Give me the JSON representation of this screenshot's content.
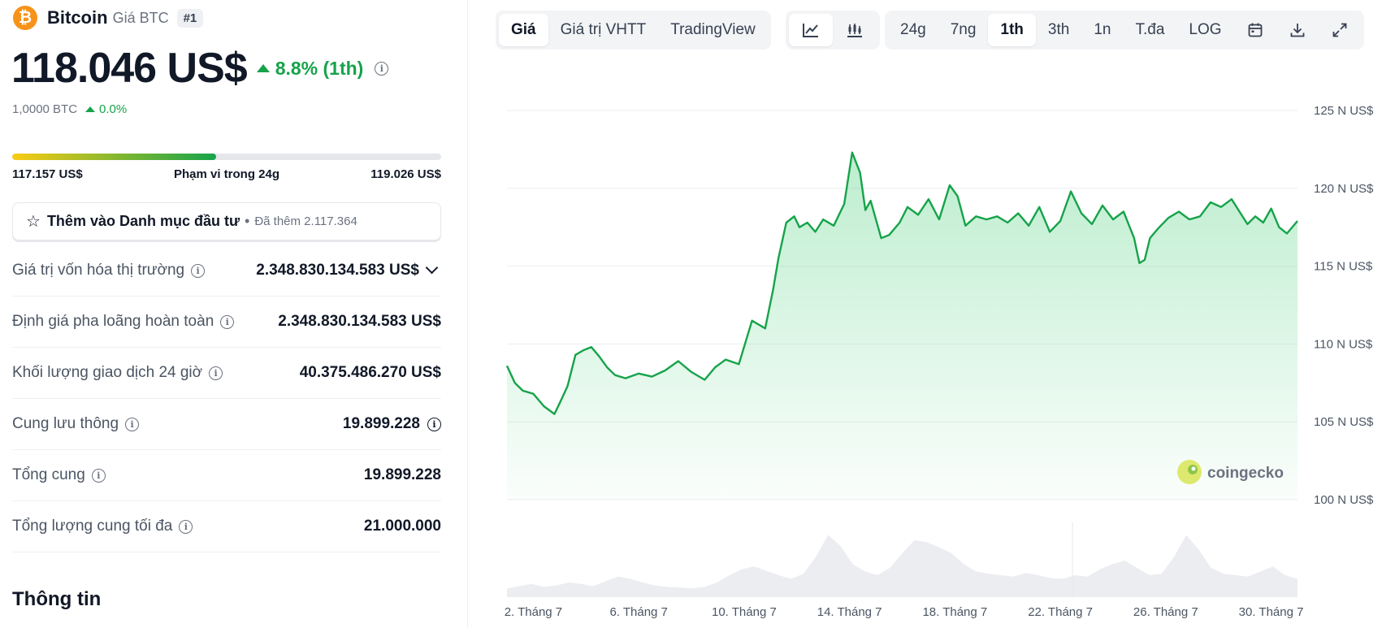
{
  "coin": {
    "logo_glyph": "₿",
    "name": "Bitcoin",
    "subtitle": "Giá BTC",
    "rank": "#1",
    "price": "118.046 US$",
    "change_label": "8.8% (1th)",
    "btc_amount": "1,0000 BTC",
    "btc_change": "0.0%"
  },
  "range": {
    "low": "117.157 US$",
    "label": "Phạm vi trong 24g",
    "high": "119.026 US$",
    "fill_percent": 47.5
  },
  "watchlist": {
    "star_glyph": "☆",
    "label": "Thêm vào Danh mục đầu tư",
    "separator": "•",
    "added": "Đã thêm 2.117.364"
  },
  "stats": [
    {
      "key": "Giá trị vốn hóa thị trường",
      "value": "2.348.830.134.583 US$"
    },
    {
      "key": "Định giá pha loãng hoàn toàn",
      "value": "2.348.830.134.583 US$"
    },
    {
      "key": "Khối lượng giao dịch 24 giờ",
      "value": "40.375.486.270 US$"
    },
    {
      "key": "Cung lưu thông",
      "value": "19.899.228"
    },
    {
      "key": "Tổng cung",
      "value": "19.899.228"
    },
    {
      "key": "Tổng lượng cung tối đa",
      "value": "21.000.000"
    }
  ],
  "info_glyph": "i",
  "section_title": "Thông tin",
  "toolbar": {
    "view_tabs": [
      "Giá",
      "Giá trị VHTT",
      "TradingView"
    ],
    "active_view": 0,
    "chart_type_icons": [
      "line-chart-icon",
      "candlestick-icon"
    ],
    "active_chart_type": 0,
    "range_tabs": [
      "24g",
      "7ng",
      "1th",
      "3th",
      "1n",
      "T.đa",
      "LOG"
    ],
    "active_range": 2,
    "extra_icons": [
      "calendar-icon",
      "download-icon",
      "fullscreen-icon"
    ]
  },
  "chart_data": {
    "type": "area",
    "title": "",
    "xlabel": "",
    "ylabel": "",
    "ylim": [
      100,
      125
    ],
    "y_ticks": [
      125,
      120,
      115,
      110,
      105,
      100
    ],
    "y_tick_labels": [
      "125 N US$",
      "120 N US$",
      "115 N US$",
      "110 N US$",
      "105 N US$",
      "100 N US$"
    ],
    "x_range": [
      1,
      31
    ],
    "x_ticks": [
      2,
      6,
      10,
      14,
      18,
      22,
      26,
      30
    ],
    "x_tick_labels": [
      "2. Tháng 7",
      "6. Tháng 7",
      "10. Tháng 7",
      "14. Tháng 7",
      "18. Tháng 7",
      "22. Tháng 7",
      "26. Tháng 7",
      "30. Tháng 7"
    ],
    "x": [
      1.0,
      1.3,
      1.6,
      2.0,
      2.4,
      2.8,
      3.0,
      3.3,
      3.6,
      3.9,
      4.2,
      4.5,
      4.8,
      5.1,
      5.5,
      6.0,
      6.5,
      7.0,
      7.5,
      8.0,
      8.5,
      8.9,
      9.3,
      9.8,
      10.3,
      10.8,
      11.1,
      11.3,
      11.6,
      11.9,
      12.1,
      12.4,
      12.7,
      13.0,
      13.4,
      13.8,
      14.1,
      14.4,
      14.6,
      14.8,
      15.2,
      15.5,
      15.9,
      16.2,
      16.6,
      17.0,
      17.4,
      17.8,
      18.1,
      18.4,
      18.8,
      19.2,
      19.6,
      20.0,
      20.4,
      20.8,
      21.2,
      21.6,
      22.0,
      22.4,
      22.8,
      23.2,
      23.6,
      24.0,
      24.4,
      24.8,
      25.0,
      25.2,
      25.4,
      25.7,
      26.1,
      26.5,
      26.9,
      27.3,
      27.7,
      28.1,
      28.5,
      28.8,
      29.1,
      29.4,
      29.7,
      30.0,
      30.3,
      30.6,
      31.0
    ],
    "values": [
      108.6,
      107.5,
      107.0,
      106.8,
      106.0,
      105.5,
      106.2,
      107.3,
      109.3,
      109.6,
      109.8,
      109.2,
      108.5,
      108.0,
      107.8,
      108.1,
      107.9,
      108.3,
      108.9,
      108.2,
      107.7,
      108.5,
      109.0,
      108.7,
      111.5,
      111.0,
      113.5,
      115.5,
      117.8,
      118.2,
      117.5,
      117.8,
      117.2,
      118.0,
      117.6,
      119.0,
      122.3,
      121.0,
      118.6,
      119.2,
      116.8,
      117.0,
      117.8,
      118.8,
      118.3,
      119.3,
      118.0,
      120.2,
      119.5,
      117.6,
      118.2,
      118.0,
      118.2,
      117.8,
      118.4,
      117.6,
      118.8,
      117.2,
      117.9,
      119.8,
      118.4,
      117.7,
      118.9,
      118.0,
      118.5,
      116.8,
      115.2,
      115.4,
      116.8,
      117.4,
      118.1,
      118.5,
      118.0,
      118.2,
      119.1,
      118.8,
      119.3,
      118.5,
      117.7,
      118.2,
      117.8,
      118.7,
      117.5,
      117.1,
      117.9
    ],
    "volume_relative": [
      0.12,
      0.15,
      0.18,
      0.14,
      0.16,
      0.2,
      0.18,
      0.15,
      0.22,
      0.28,
      0.25,
      0.2,
      0.16,
      0.14,
      0.13,
      0.12,
      0.14,
      0.2,
      0.3,
      0.38,
      0.42,
      0.36,
      0.3,
      0.25,
      0.32,
      0.55,
      0.85,
      0.7,
      0.45,
      0.35,
      0.3,
      0.4,
      0.6,
      0.78,
      0.75,
      0.68,
      0.6,
      0.45,
      0.35,
      0.32,
      0.3,
      0.28,
      0.33,
      0.3,
      0.26,
      0.25,
      0.3,
      0.28,
      0.38,
      0.45,
      0.5,
      0.4,
      0.3,
      0.32,
      0.55,
      0.85,
      0.65,
      0.4,
      0.32,
      0.3,
      0.28,
      0.35,
      0.42,
      0.3,
      0.25
    ],
    "grid": true,
    "watermark": "coingecko",
    "line_color": "#16a34a",
    "fill_color": "#22c55e"
  }
}
